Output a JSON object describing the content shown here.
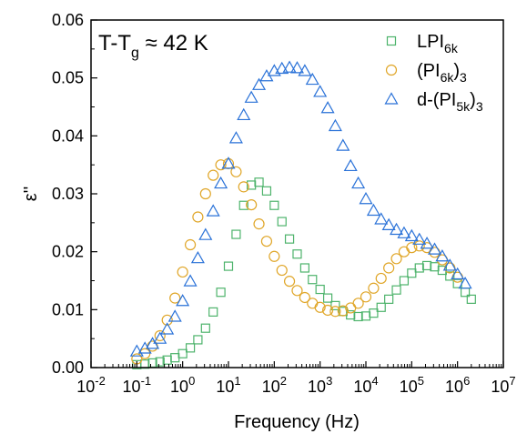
{
  "chart_data": {
    "type": "scatter",
    "xlabel": "Frequency (Hz)",
    "ylabel": "ε''",
    "x_scale": "log",
    "xlim": [
      0.01,
      10000000
    ],
    "ylim": [
      0,
      0.06
    ],
    "x_ticks": [
      {
        "base": "10",
        "exp": "-2"
      },
      {
        "base": "10",
        "exp": "-1"
      },
      {
        "base": "10",
        "exp": "0"
      },
      {
        "base": "10",
        "exp": "1"
      },
      {
        "base": "10",
        "exp": "2"
      },
      {
        "base": "10",
        "exp": "3"
      },
      {
        "base": "10",
        "exp": "4"
      },
      {
        "base": "10",
        "exp": "5"
      },
      {
        "base": "10",
        "exp": "6"
      },
      {
        "base": "10",
        "exp": "7"
      }
    ],
    "y_ticks": [
      "0.00",
      "0.01",
      "0.02",
      "0.03",
      "0.04",
      "0.05",
      "0.06"
    ],
    "annotation": {
      "main": "T-T",
      "sub": "g",
      "rest": " ≈ 42 K"
    },
    "legend_position": "top-right",
    "grid": false,
    "series": [
      {
        "name": "LPI",
        "name_sub": "6k",
        "name_tail": "",
        "name_tail_sub": "",
        "marker": "square",
        "color": "#4db36b",
        "points": [
          [
            0.1,
            0.0005
          ],
          [
            0.15,
            0.0006
          ],
          [
            0.22,
            0.0008
          ],
          [
            0.32,
            0.001
          ],
          [
            0.46,
            0.0013
          ],
          [
            0.68,
            0.0017
          ],
          [
            1.0,
            0.0024
          ],
          [
            1.47,
            0.0034
          ],
          [
            2.15,
            0.0048
          ],
          [
            3.16,
            0.0068
          ],
          [
            4.64,
            0.0096
          ],
          [
            6.81,
            0.013
          ],
          [
            10,
            0.0175
          ],
          [
            14.7,
            0.023
          ],
          [
            21.5,
            0.028
          ],
          [
            31.6,
            0.0315
          ],
          [
            46.4,
            0.032
          ],
          [
            68.1,
            0.0305
          ],
          [
            100,
            0.028
          ],
          [
            147,
            0.0252
          ],
          [
            215,
            0.0222
          ],
          [
            316,
            0.0196
          ],
          [
            464,
            0.0172
          ],
          [
            681,
            0.0152
          ],
          [
            1000,
            0.0135
          ],
          [
            1470,
            0.012
          ],
          [
            2150,
            0.0107
          ],
          [
            3160,
            0.0097
          ],
          [
            4640,
            0.0091
          ],
          [
            6810,
            0.0088
          ],
          [
            10000,
            0.0089
          ],
          [
            14700,
            0.0094
          ],
          [
            21500,
            0.0104
          ],
          [
            31600,
            0.0118
          ],
          [
            46400,
            0.0134
          ],
          [
            68100,
            0.015
          ],
          [
            100000,
            0.0163
          ],
          [
            147000,
            0.0172
          ],
          [
            215000,
            0.0176
          ],
          [
            316000,
            0.0174
          ],
          [
            464000,
            0.0168
          ],
          [
            681000,
            0.0158
          ],
          [
            1000000,
            0.0145
          ],
          [
            1470000,
            0.013
          ],
          [
            2000000,
            0.0118
          ]
        ]
      },
      {
        "name": "(PI",
        "name_sub": "6k",
        "name_tail": ")",
        "name_tail_sub": "3",
        "marker": "circle",
        "color": "#e0a628",
        "points": [
          [
            0.1,
            0.0015
          ],
          [
            0.15,
            0.0024
          ],
          [
            0.22,
            0.0037
          ],
          [
            0.32,
            0.0055
          ],
          [
            0.46,
            0.0082
          ],
          [
            0.68,
            0.012
          ],
          [
            1.0,
            0.0165
          ],
          [
            1.47,
            0.0212
          ],
          [
            2.15,
            0.026
          ],
          [
            3.16,
            0.03
          ],
          [
            4.64,
            0.0332
          ],
          [
            6.81,
            0.035
          ],
          [
            10,
            0.0352
          ],
          [
            14.7,
            0.0338
          ],
          [
            21.5,
            0.0312
          ],
          [
            31.6,
            0.0281
          ],
          [
            46.4,
            0.0248
          ],
          [
            68.1,
            0.0218
          ],
          [
            100,
            0.0192
          ],
          [
            147,
            0.0168
          ],
          [
            215,
            0.0149
          ],
          [
            316,
            0.0133
          ],
          [
            464,
            0.0121
          ],
          [
            681,
            0.0111
          ],
          [
            1000,
            0.0104
          ],
          [
            1470,
            0.0099
          ],
          [
            2150,
            0.0097
          ],
          [
            3160,
            0.0098
          ],
          [
            4640,
            0.0103
          ],
          [
            6810,
            0.0111
          ],
          [
            10000,
            0.0122
          ],
          [
            14700,
            0.0137
          ],
          [
            21500,
            0.0154
          ],
          [
            31600,
            0.0172
          ],
          [
            46400,
            0.0188
          ],
          [
            68100,
            0.02
          ],
          [
            100000,
            0.0207
          ],
          [
            147000,
            0.021
          ],
          [
            215000,
            0.0207
          ],
          [
            316000,
            0.0199
          ],
          [
            464000,
            0.0186
          ],
          [
            681000,
            0.0172
          ],
          [
            1000000,
            0.0156
          ]
        ]
      },
      {
        "name": "d-(PI",
        "name_sub": "5k",
        "name_tail": ")",
        "name_tail_sub": "3",
        "marker": "triangle",
        "color": "#2a72d8",
        "points": [
          [
            0.1,
            0.0028
          ],
          [
            0.15,
            0.0033
          ],
          [
            0.22,
            0.0041
          ],
          [
            0.32,
            0.005
          ],
          [
            0.46,
            0.0066
          ],
          [
            0.68,
            0.0088
          ],
          [
            1.0,
            0.0115
          ],
          [
            1.47,
            0.0149
          ],
          [
            2.15,
            0.0189
          ],
          [
            3.16,
            0.0229
          ],
          [
            4.64,
            0.027
          ],
          [
            6.81,
            0.0318
          ],
          [
            10,
            0.0352
          ],
          [
            14.7,
            0.0396
          ],
          [
            21.5,
            0.0436
          ],
          [
            31.6,
            0.0466
          ],
          [
            46.4,
            0.0488
          ],
          [
            68.1,
            0.0503
          ],
          [
            100,
            0.0512
          ],
          [
            147,
            0.0516
          ],
          [
            215,
            0.0518
          ],
          [
            316,
            0.0517
          ],
          [
            464,
            0.0512
          ],
          [
            681,
            0.0497
          ],
          [
            1000,
            0.0476
          ],
          [
            1470,
            0.0448
          ],
          [
            2150,
            0.0417
          ],
          [
            3160,
            0.0383
          ],
          [
            4640,
            0.0348
          ],
          [
            6810,
            0.0318
          ],
          [
            10000,
            0.0291
          ],
          [
            14700,
            0.0271
          ],
          [
            21500,
            0.0256
          ],
          [
            31600,
            0.0246
          ],
          [
            46400,
            0.0238
          ],
          [
            68100,
            0.0232
          ],
          [
            100000,
            0.0227
          ],
          [
            147000,
            0.0221
          ],
          [
            215000,
            0.0214
          ],
          [
            316000,
            0.0204
          ],
          [
            464000,
            0.0192
          ],
          [
            681000,
            0.0176
          ],
          [
            1000000,
            0.0161
          ],
          [
            1470000,
            0.0145
          ]
        ]
      }
    ]
  }
}
